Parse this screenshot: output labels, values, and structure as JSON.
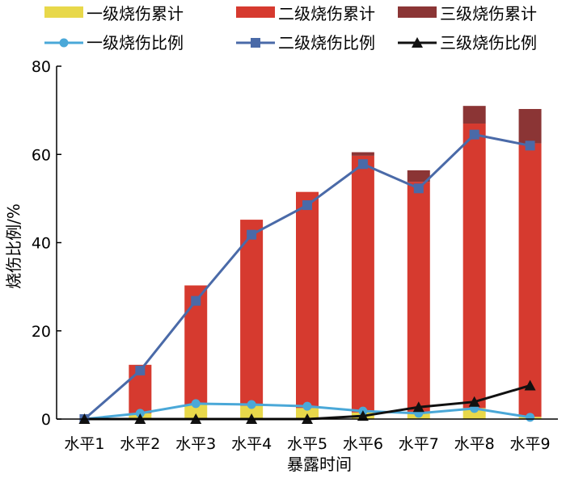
{
  "chart_data": {
    "type": "bar+line",
    "categories": [
      "水平1",
      "水平2",
      "水平3",
      "水平4",
      "水平5",
      "水平6",
      "水平7",
      "水平8",
      "水平9"
    ],
    "stacked_bars": [
      {
        "name": "一级烧伤累计",
        "color": "#e8d84a",
        "values": [
          0,
          1.3,
          3.3,
          3.0,
          2.5,
          1.5,
          1.5,
          2.5,
          0.5
        ]
      },
      {
        "name": "二级烧伤累计",
        "color": "#d63a2f",
        "values": [
          0,
          11.0,
          27.0,
          42.2,
          49.0,
          58.2,
          52.3,
          64.5,
          62.0
        ]
      },
      {
        "name": "三级烧伤累计",
        "color": "#8b3535",
        "values": [
          0,
          0,
          0,
          0,
          0,
          0.8,
          2.6,
          4.0,
          7.8
        ]
      }
    ],
    "lines": [
      {
        "name": "一级烧伤比例",
        "color": "#4aa8d8",
        "marker": "circle",
        "values": [
          0,
          1.3,
          3.5,
          3.3,
          2.9,
          1.8,
          1.3,
          2.4,
          0.4
        ]
      },
      {
        "name": "二级烧伤比例",
        "color": "#4a6aa8",
        "marker": "square",
        "values": [
          0,
          11.0,
          26.8,
          41.8,
          48.5,
          57.8,
          52.3,
          64.5,
          62.0
        ]
      },
      {
        "name": "三级烧伤比例",
        "color": "#111111",
        "marker": "triangle",
        "values": [
          0,
          0,
          0,
          0,
          0,
          0.7,
          2.7,
          3.9,
          7.6
        ]
      }
    ],
    "xlabel": "暴露时间",
    "ylabel": "烧伤比例/%",
    "ylim": [
      0,
      80
    ],
    "yticks": [
      "0",
      "20",
      "40",
      "60",
      "80"
    ],
    "grid": false,
    "legend_position": "top"
  }
}
